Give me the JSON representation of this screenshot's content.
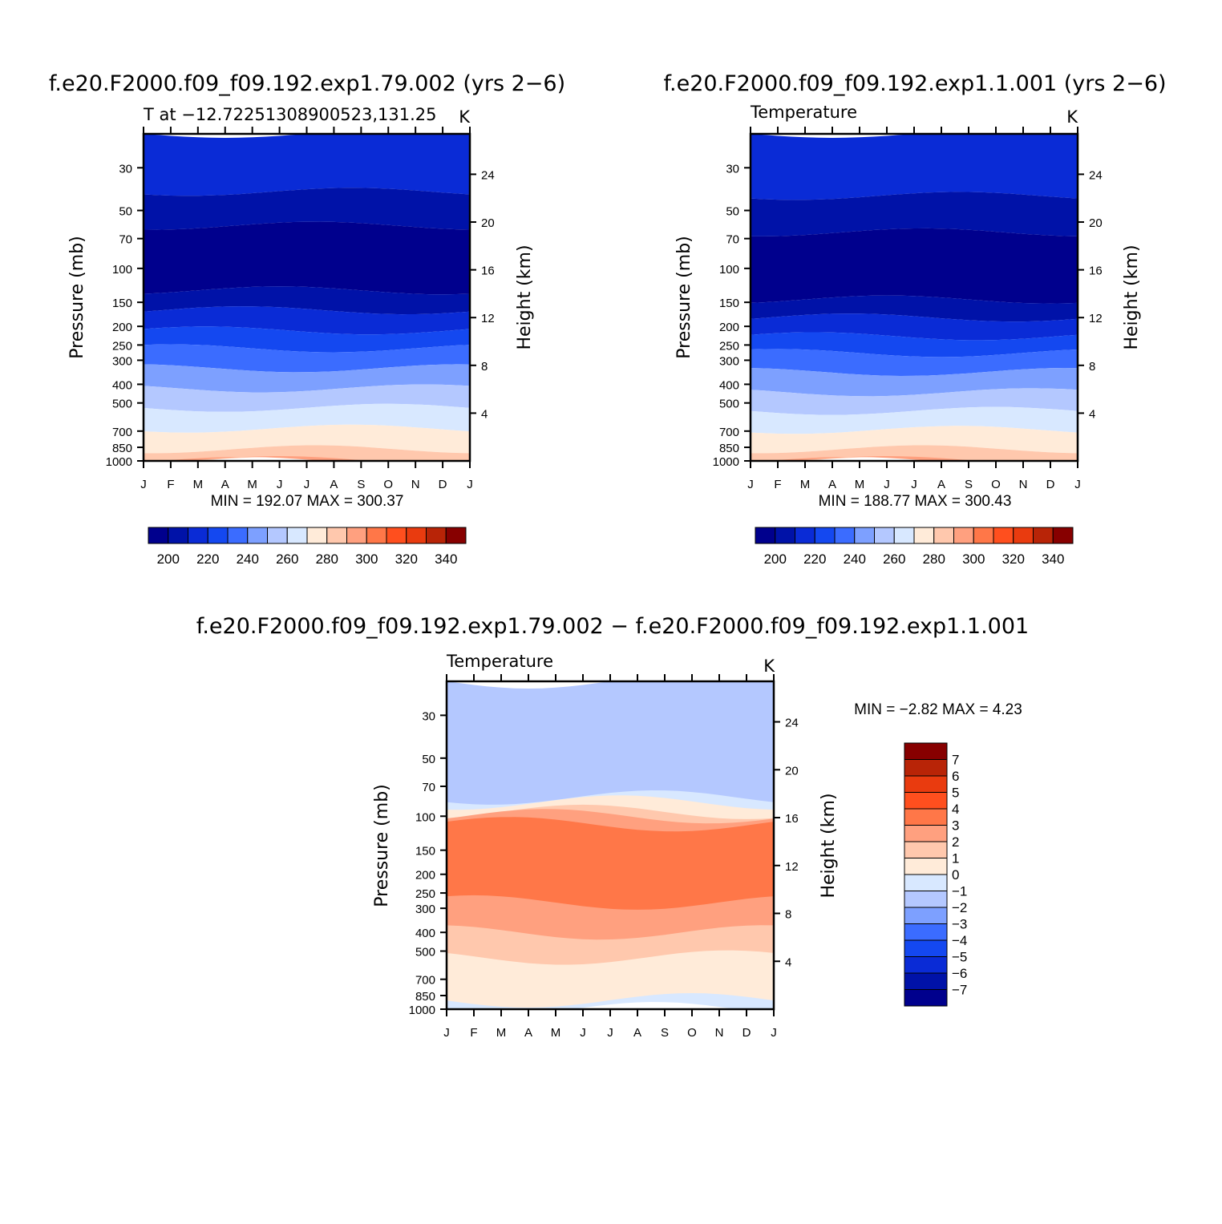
{
  "months": [
    "J",
    "F",
    "M",
    "A",
    "M",
    "J",
    "J",
    "A",
    "S",
    "O",
    "N",
    "D",
    "J"
  ],
  "pressure_ticks": [
    30,
    50,
    70,
    100,
    150,
    200,
    250,
    300,
    400,
    500,
    700,
    850,
    1000
  ],
  "height_ticks": [
    4,
    8,
    12,
    16,
    20,
    24
  ],
  "chart_data": [
    {
      "type": "heatmap",
      "title": "f.e20.F2000.f09_f09.192.exp1.79.002 (yrs 2−6)",
      "subtitle_left": "T at −12.72251308900523,131.25",
      "subtitle_right": "K",
      "xlabel": "",
      "ylabel": "Pressure (mb)",
      "ylabel_right": "Height (km)",
      "minmax_text": "MIN = 192.07 MAX = 300.37",
      "min": 192.07,
      "max": 300.37,
      "colorbar": {
        "levels": [
          195,
          200,
          205,
          210,
          215,
          220,
          225,
          230,
          235,
          240,
          245,
          250,
          255,
          260,
          265,
          270,
          275,
          280,
          285,
          290,
          295,
          300,
          305,
          310,
          315,
          320,
          325,
          330,
          335,
          340,
          345
        ],
        "labels": [
          "200",
          "220",
          "240",
          "260",
          "280",
          "300",
          "320",
          "340"
        ],
        "colors": [
          "#00008d",
          "#0012a8",
          "#0a2bd6",
          "#1448f0",
          "#3b6cff",
          "#7da0ff",
          "#b4c8ff",
          "#d8e8ff",
          "#ffebd9",
          "#ffc8ad",
          "#ffa07f",
          "#ff7748",
          "#ff4f1e",
          "#e93b0f",
          "#b82407",
          "#870000"
        ]
      },
      "bands": [
        {
          "bottom_p": 40,
          "top_p": 20,
          "color": "#0a2bd6"
        },
        {
          "bottom_p": 60,
          "top_p": 40,
          "color": "#0012a8"
        },
        {
          "bottom_p": 130,
          "top_p": 60,
          "color": "#00008d"
        },
        {
          "bottom_p": 165,
          "top_p": 130,
          "color": "#0012a8"
        },
        {
          "bottom_p": 210,
          "top_p": 165,
          "color": "#0a2bd6"
        },
        {
          "bottom_p": 260,
          "top_p": 210,
          "color": "#1448f0"
        },
        {
          "bottom_p": 330,
          "top_p": 260,
          "color": "#3b6cff"
        },
        {
          "bottom_p": 420,
          "top_p": 330,
          "color": "#7da0ff"
        },
        {
          "bottom_p": 530,
          "top_p": 420,
          "color": "#b4c8ff"
        },
        {
          "bottom_p": 680,
          "top_p": 530,
          "color": "#d8e8ff"
        },
        {
          "bottom_p": 870,
          "top_p": 680,
          "color": "#ffebd9"
        },
        {
          "bottom_p": 1000,
          "top_p": 870,
          "color": "#ffc8ad"
        },
        {
          "bottom_p": 1000,
          "top_p": 990,
          "color": "#ffa07f"
        }
      ]
    },
    {
      "type": "heatmap",
      "title": "f.e20.F2000.f09_f09.192.exp1.1.001 (yrs 2−6)",
      "subtitle_left": "Temperature",
      "subtitle_right": "K",
      "xlabel": "",
      "ylabel": "Pressure (mb)",
      "ylabel_right": "Height (km)",
      "minmax_text": "MIN = 188.77 MAX = 300.43",
      "min": 188.77,
      "max": 300.43,
      "colorbar": {
        "levels": [
          195,
          200,
          205,
          210,
          215,
          220,
          225,
          230,
          235,
          240,
          245,
          250,
          255,
          260,
          265,
          270,
          275,
          280,
          285,
          290,
          295,
          300,
          305,
          310,
          315,
          320,
          325,
          330,
          335,
          340,
          345
        ],
        "labels": [
          "200",
          "220",
          "240",
          "260",
          "280",
          "300",
          "320",
          "340"
        ],
        "colors": [
          "#00008d",
          "#0012a8",
          "#0a2bd6",
          "#1448f0",
          "#3b6cff",
          "#7da0ff",
          "#b4c8ff",
          "#d8e8ff",
          "#ffebd9",
          "#ffc8ad",
          "#ffa07f",
          "#ff7748",
          "#ff4f1e",
          "#e93b0f",
          "#b82407",
          "#870000"
        ]
      },
      "bands": [
        {
          "bottom_p": 42,
          "top_p": 20,
          "color": "#0a2bd6"
        },
        {
          "bottom_p": 65,
          "top_p": 42,
          "color": "#0012a8"
        },
        {
          "bottom_p": 145,
          "top_p": 65,
          "color": "#00008d"
        },
        {
          "bottom_p": 180,
          "top_p": 145,
          "color": "#0012a8"
        },
        {
          "bottom_p": 225,
          "top_p": 180,
          "color": "#0a2bd6"
        },
        {
          "bottom_p": 275,
          "top_p": 225,
          "color": "#1448f0"
        },
        {
          "bottom_p": 345,
          "top_p": 275,
          "color": "#3b6cff"
        },
        {
          "bottom_p": 440,
          "top_p": 345,
          "color": "#7da0ff"
        },
        {
          "bottom_p": 550,
          "top_p": 440,
          "color": "#b4c8ff"
        },
        {
          "bottom_p": 690,
          "top_p": 550,
          "color": "#d8e8ff"
        },
        {
          "bottom_p": 870,
          "top_p": 690,
          "color": "#ffebd9"
        },
        {
          "bottom_p": 1000,
          "top_p": 870,
          "color": "#ffc8ad"
        },
        {
          "bottom_p": 1000,
          "top_p": 990,
          "color": "#ffa07f"
        }
      ]
    },
    {
      "type": "heatmap",
      "title": "f.e20.F2000.f09_f09.192.exp1.79.002 − f.e20.F2000.f09_f09.192.exp1.1.001",
      "subtitle_left": "Temperature",
      "subtitle_right": "K",
      "xlabel": "",
      "ylabel": "Pressure (mb)",
      "ylabel_right": "Height (km)",
      "minmax_text": "MIN = −2.82 MAX = 4.23",
      "min": -2.82,
      "max": 4.23,
      "colorbar": {
        "levels": [
          -7,
          -6,
          -5,
          -4,
          -3,
          -2,
          -1,
          0,
          1,
          2,
          3,
          4,
          5,
          6,
          7
        ],
        "labels": [
          "7",
          "6",
          "5",
          "4",
          "3",
          "2",
          "1",
          "0",
          "−1",
          "−2",
          "−3",
          "−4",
          "−5",
          "−6",
          "−7"
        ],
        "colors": [
          "#870000",
          "#b82407",
          "#e93b0f",
          "#ff4f1e",
          "#ff7748",
          "#ffa07f",
          "#ffc8ad",
          "#ffebd9",
          "#d8e8ff",
          "#b4c8ff",
          "#7da0ff",
          "#3b6cff",
          "#1448f0",
          "#0a2bd6",
          "#0012a8",
          "#00008d"
        ]
      },
      "bands": [
        {
          "bottom_p": 90,
          "top_p": 20,
          "color": "#b4c8ff"
        },
        {
          "bottom_p": 95,
          "top_p": 80,
          "color": "#d8e8ff"
        },
        {
          "bottom_p": 100,
          "top_p": 85,
          "color": "#ffebd9"
        },
        {
          "bottom_p": 110,
          "top_p": 95,
          "color": "#ffc8ad"
        },
        {
          "bottom_p": 120,
          "top_p": 100,
          "color": "#ffa07f"
        },
        {
          "bottom_p": 300,
          "top_p": 110,
          "color": "#ff7748"
        },
        {
          "bottom_p": 420,
          "top_p": 280,
          "color": "#ffa07f"
        },
        {
          "bottom_p": 560,
          "top_p": 400,
          "color": "#ffc8ad"
        },
        {
          "bottom_p": 920,
          "top_p": 540,
          "color": "#ffebd9"
        },
        {
          "bottom_p": 1000,
          "top_p": 900,
          "color": "#d8e8ff"
        }
      ]
    }
  ]
}
